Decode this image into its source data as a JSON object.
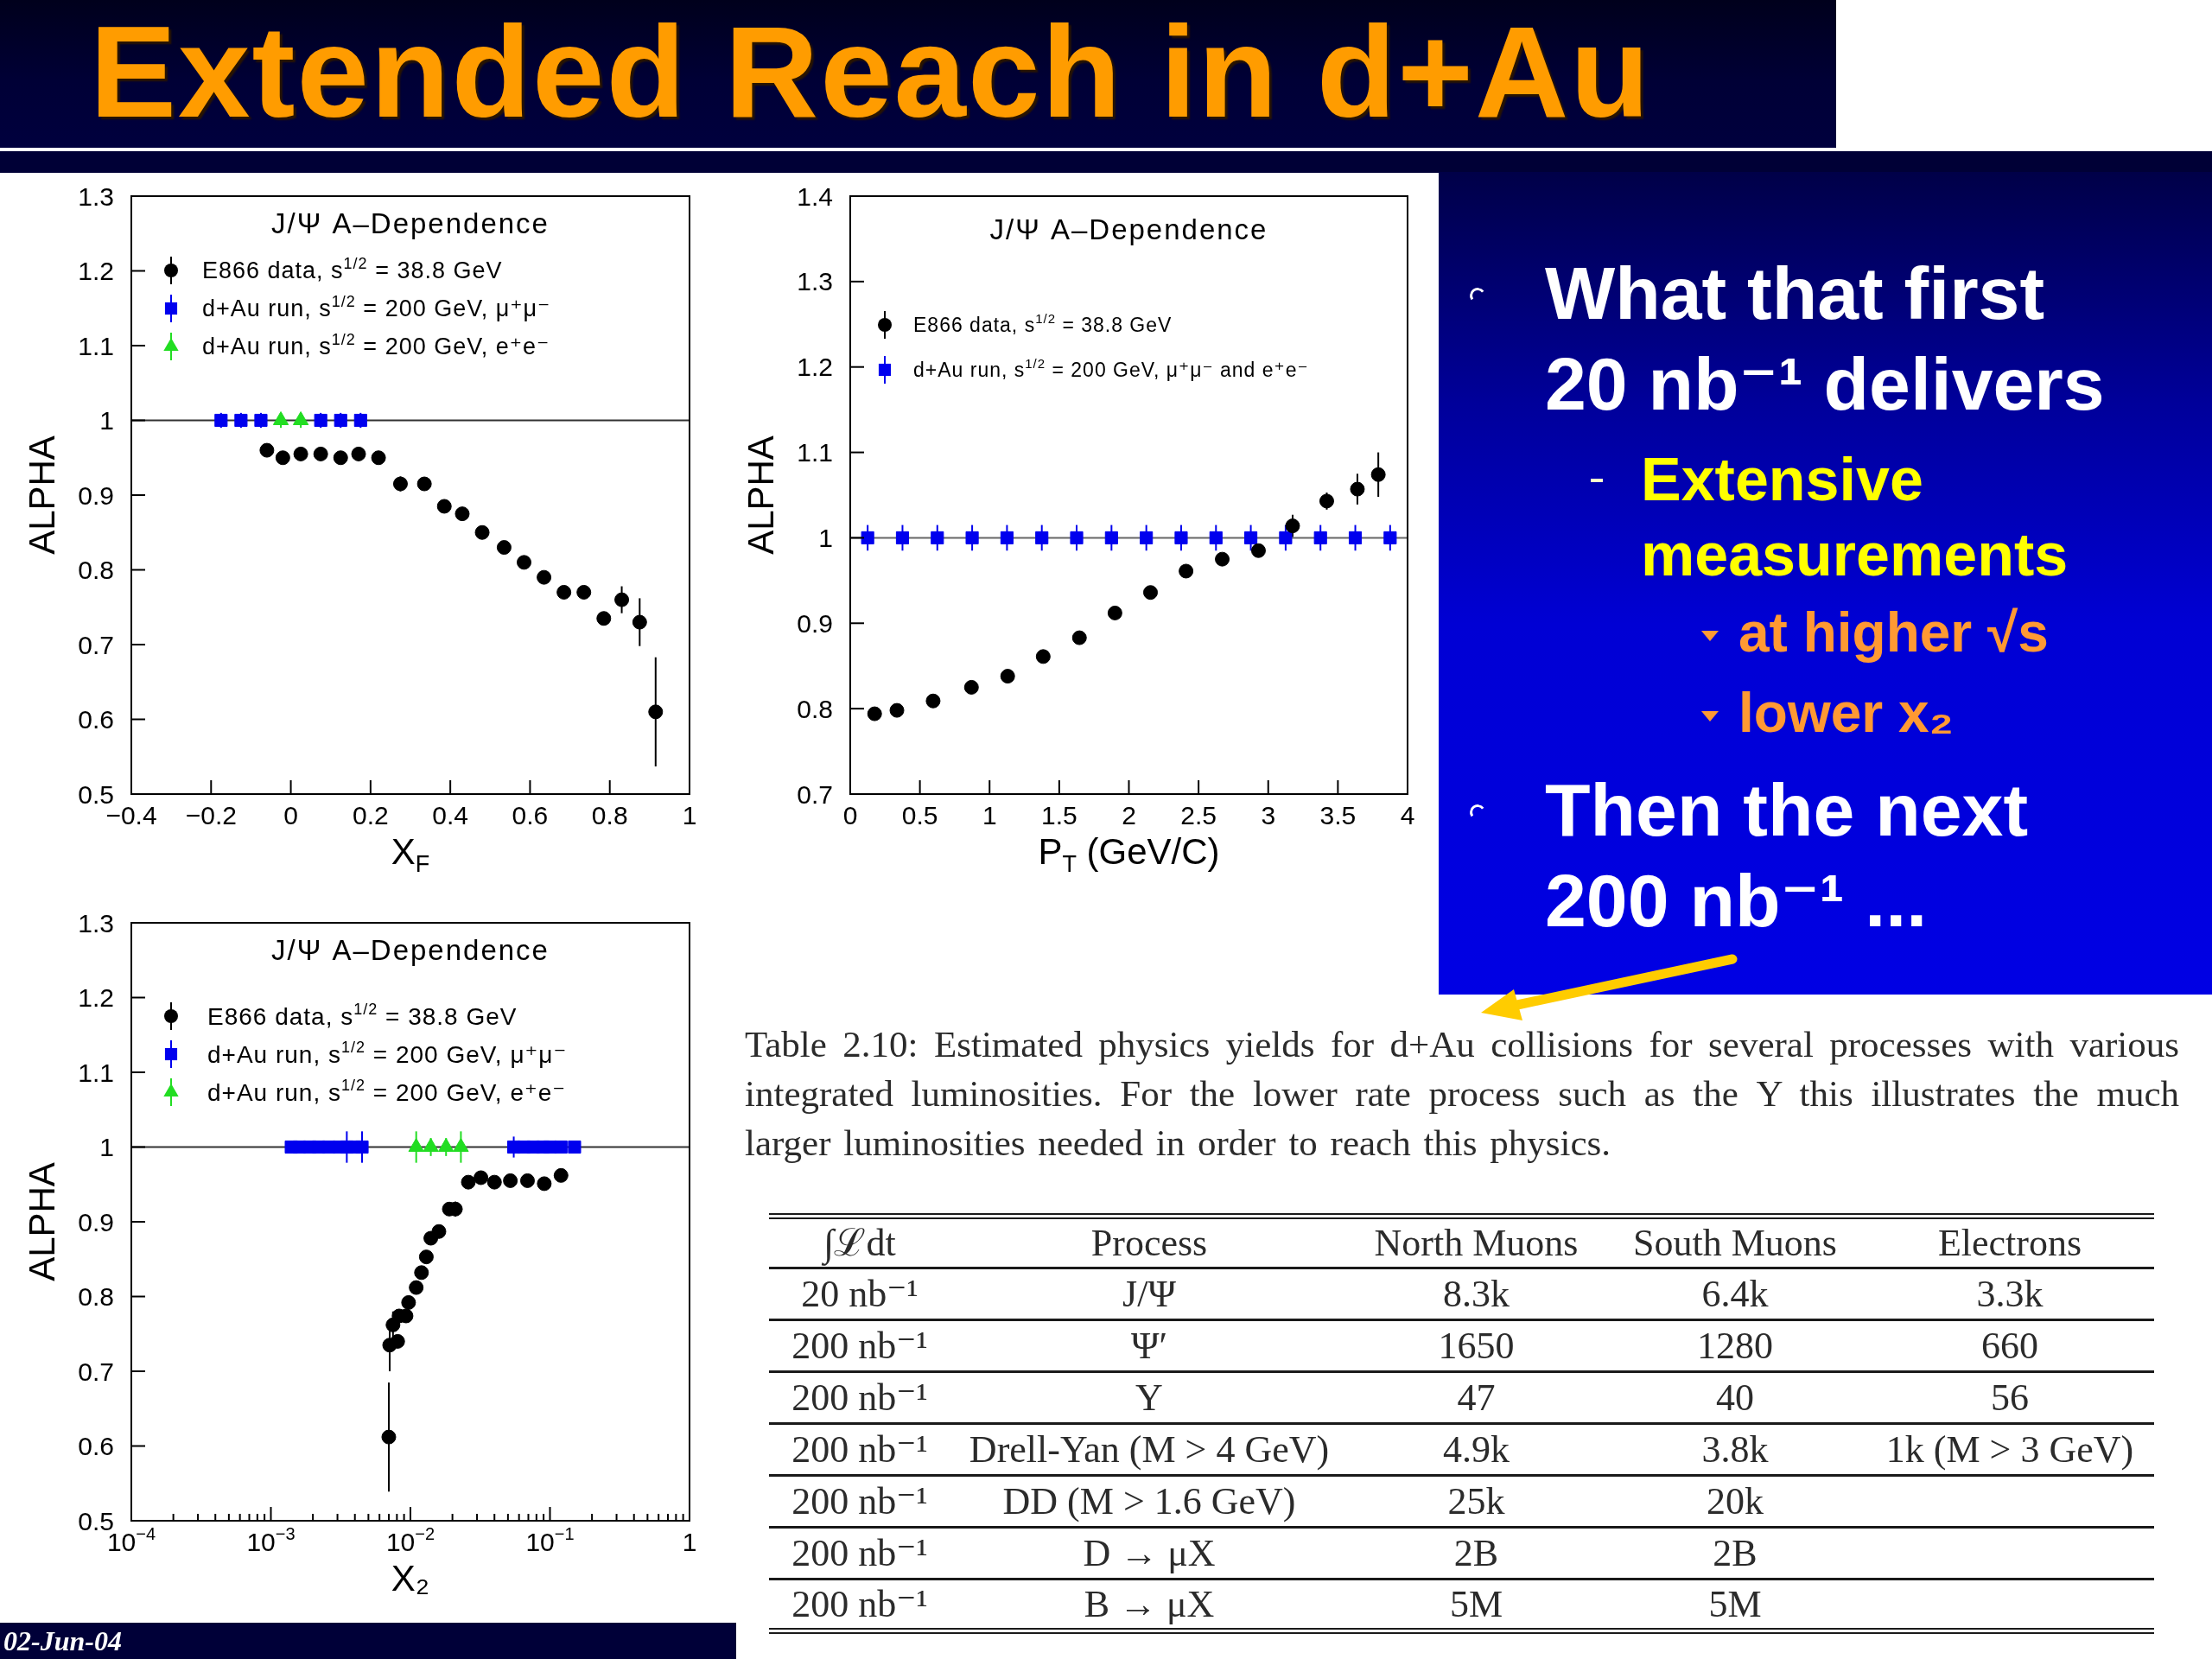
{
  "chart_data": [
    {
      "type": "other",
      "title": "Extended Reach in d+Au",
      "annotations": [
        "02-Jun-04"
      ]
    },
    {
      "type": "scatter",
      "title": "J/Ψ A–Dependence",
      "xlabel": "X$_{F}$",
      "ylabel": "ALPHA",
      "xlim": [
        -0.4,
        1
      ],
      "xticks": [
        {
          "value": -0.4,
          "label": "−0.4"
        },
        {
          "value": -0.2,
          "label": "−0.2"
        },
        0,
        0.2,
        0.4,
        0.6,
        0.8,
        1
      ],
      "ylim": [
        0.5,
        1.3
      ],
      "yticks": [
        0.5,
        0.6,
        0.7,
        0.8,
        0.9,
        1,
        1.1,
        1.2,
        1.3
      ],
      "legend": "top left",
      "ref_lines": [
        {
          "axis": "y",
          "value": 1,
          "color": "#333333"
        }
      ],
      "series": [
        {
          "name": "E866 data, s$^{1/2}$ = 38.8 GeV",
          "color": "#000000",
          "marker": "circle",
          "x": [
            -0.06,
            -0.02,
            0.025,
            0.075,
            0.125,
            0.17,
            0.22,
            0.275,
            0.335,
            0.385,
            0.43,
            0.48,
            0.535,
            0.585,
            0.635,
            0.685,
            0.735,
            0.785,
            0.83,
            0.875,
            0.915
          ],
          "values": [
            0.96,
            0.95,
            0.955,
            0.955,
            0.95,
            0.955,
            0.95,
            0.915,
            0.915,
            0.885,
            0.875,
            0.85,
            0.83,
            0.81,
            0.79,
            0.77,
            0.77,
            0.735,
            0.76,
            0.73,
            0.61
          ],
          "errors": [
            null,
            null,
            null,
            null,
            null,
            null,
            null,
            0.01,
            null,
            null,
            null,
            null,
            null,
            null,
            null,
            null,
            null,
            null,
            0.018,
            0.032,
            0.073
          ]
        },
        {
          "name": "d+Au run, s$^{1/2}$ = 200 GeV, μ⁺μ⁻",
          "color": "#0000ee",
          "marker": "square",
          "x": [
            -0.175,
            -0.125,
            -0.075,
            0.075,
            0.125,
            0.175
          ],
          "values": [
            1,
            1,
            1,
            1,
            1,
            1
          ],
          "errors": [
            0.01,
            0.01,
            0.01,
            0.01,
            0.01,
            0.01
          ]
        },
        {
          "name": "d+Au run, s$^{1/2}$ = 200 GeV, e⁺e⁻",
          "color": "#22dd22",
          "marker": "triangle",
          "x": [
            -0.025,
            0.025
          ],
          "values": [
            1,
            1
          ],
          "errors": [
            0.01,
            0.01
          ]
        }
      ]
    },
    {
      "type": "scatter",
      "title": "J/Ψ A–Dependence",
      "xlabel": "P$_{T}$ (GeV/C)",
      "ylabel": "ALPHA",
      "xlim": [
        0,
        4
      ],
      "xticks": [
        0,
        0.5,
        1,
        1.5,
        2,
        2.5,
        3,
        3.5,
        4
      ],
      "ylim": [
        0.7,
        1.4
      ],
      "yticks": [
        0.7,
        0.8,
        0.9,
        1,
        1.1,
        1.2,
        1.3,
        1.4
      ],
      "legend": "top left",
      "ref_lines": [
        {
          "axis": "y",
          "value": 1,
          "color": "#666666"
        }
      ],
      "series": [
        {
          "name": "E866 data, s$^{1/2}$ = 38.8 GeV",
          "color": "#000000",
          "marker": "circle",
          "x": [
            0.175,
            0.335,
            0.595,
            0.87,
            1.13,
            1.385,
            1.645,
            1.9,
            2.155,
            2.41,
            2.67,
            2.93,
            3.175,
            3.42,
            3.64,
            3.79
          ],
          "values": [
            0.794,
            0.798,
            0.809,
            0.825,
            0.838,
            0.861,
            0.883,
            0.912,
            0.936,
            0.961,
            0.975,
            0.985,
            1.014,
            1.043,
            1.057,
            1.074
          ],
          "errors": [
            null,
            null,
            null,
            null,
            null,
            null,
            null,
            null,
            null,
            null,
            null,
            null,
            0.013,
            0.01,
            0.018,
            0.026
          ]
        },
        {
          "name": "d+Au run, s$^{1/2}$ = 200 GeV, μ⁺μ⁻ and e⁺e⁻",
          "color": "#0000ee",
          "marker": "square",
          "x": [
            0.125,
            0.375,
            0.625,
            0.875,
            1.125,
            1.375,
            1.625,
            1.875,
            2.125,
            2.375,
            2.625,
            2.875,
            3.125,
            3.375,
            3.625,
            3.875
          ],
          "values": [
            1,
            1,
            1,
            1,
            1,
            1,
            1,
            1,
            1,
            1,
            1,
            1,
            1,
            1,
            1,
            1
          ],
          "errors": [
            0.015,
            0.015,
            0.015,
            0.015,
            0.015,
            0.015,
            0.015,
            0.015,
            0.015,
            0.015,
            0.015,
            0.015,
            0.015,
            0.015,
            0.015,
            0.015
          ]
        }
      ]
    },
    {
      "type": "other",
      "annotations": [
        "What that first 20 nb⁻¹ delivers",
        "Extensive measurements",
        "at higher √s",
        "lower x₂",
        "Then the next 200 nb⁻¹ ..."
      ]
    },
    {
      "type": "scatter",
      "title": "J/Ψ A–Dependence",
      "xlabel": "X₂",
      "ylabel": "ALPHA",
      "log": "x",
      "xlim": [
        0.0001,
        1
      ],
      "xticks": [
        {
          "value": 0.0001,
          "label": "10$^{−4}$"
        },
        {
          "value": 0.0002,
          "label": null
        },
        {
          "value": 0.0003,
          "label": null
        },
        {
          "value": 0.0004,
          "label": null
        },
        {
          "value": 0.0005,
          "label": null
        },
        {
          "value": 0.0006,
          "label": null
        },
        {
          "value": 0.0007,
          "label": null
        },
        {
          "value": 0.0008,
          "label": null
        },
        {
          "value": 0.0009,
          "label": null
        },
        {
          "value": 0.001,
          "label": "10$^{−3}$"
        },
        {
          "value": 0.002,
          "label": null
        },
        {
          "value": 0.003,
          "label": null
        },
        {
          "value": 0.004,
          "label": null
        },
        {
          "value": 0.005,
          "label": null
        },
        {
          "value": 0.006,
          "label": null
        },
        {
          "value": 0.007,
          "label": null
        },
        {
          "value": 0.008,
          "label": null
        },
        {
          "value": 0.009,
          "label": null
        },
        {
          "value": 0.01,
          "label": "10$^{−2}$"
        },
        {
          "value": 0.02,
          "label": null
        },
        {
          "value": 0.03,
          "label": null
        },
        {
          "value": 0.04,
          "label": null
        },
        {
          "value": 0.05,
          "label": null
        },
        {
          "value": 0.06,
          "label": null
        },
        {
          "value": 0.07,
          "label": null
        },
        {
          "value": 0.08,
          "label": null
        },
        {
          "value": 0.09,
          "label": null
        },
        {
          "value": 0.1,
          "label": "10$^{−1}$"
        },
        {
          "value": 0.2,
          "label": null
        },
        {
          "value": 0.3,
          "label": null
        },
        {
          "value": 0.4,
          "label": null
        },
        {
          "value": 0.5,
          "label": null
        },
        {
          "value": 0.6,
          "label": null
        },
        {
          "value": 0.7,
          "label": null
        },
        {
          "value": 0.8,
          "label": null
        },
        {
          "value": 0.9,
          "label": null
        },
        1
      ],
      "ylim": [
        0.5,
        1.3
      ],
      "yticks": [
        0.5,
        0.6,
        0.7,
        0.8,
        0.9,
        1,
        1.1,
        1.2,
        1.3
      ],
      "legend": "top left",
      "ref_lines": [
        {
          "axis": "y",
          "value": 1,
          "color": "#333333"
        }
      ],
      "series": [
        {
          "name": "E866 data, s$^{1/2}$ = 38.8 GeV",
          "color": "#000000",
          "marker": "circle",
          "x": [
            0.007,
            0.0071,
            0.0075,
            0.0081,
            0.0083,
            0.0093,
            0.0097,
            0.011,
            0.012,
            0.013,
            0.014,
            0.016,
            0.019,
            0.021,
            0.026,
            0.032,
            0.04,
            0.052,
            0.069,
            0.091,
            0.12
          ],
          "values": [
            0.612,
            0.735,
            0.762,
            0.74,
            0.774,
            0.774,
            0.792,
            0.812,
            0.832,
            0.853,
            0.878,
            0.887,
            0.917,
            0.917,
            0.953,
            0.959,
            0.953,
            0.955,
            0.955,
            0.951,
            0.962
          ],
          "errors": [
            0.073,
            0.035,
            0.018,
            null,
            null,
            null,
            null,
            null,
            null,
            null,
            null,
            null,
            null,
            0.01,
            null,
            null,
            null,
            null,
            null,
            null,
            null
          ]
        },
        {
          "name": "d+Au run, s$^{1/2}$ = 200 GeV, μ⁺μ⁻",
          "color": "#0000ee",
          "marker": "square",
          "x": [
            0.0014,
            0.0016,
            0.0019,
            0.0022,
            0.0026,
            0.0031,
            0.0035,
            0.004,
            0.0045,
            0.055,
            0.065,
            0.076,
            0.089,
            0.1,
            0.12,
            0.15
          ],
          "values": [
            1,
            1,
            1,
            1,
            1,
            1,
            1,
            1,
            1,
            1,
            1,
            1,
            1,
            1,
            1,
            1
          ],
          "errors": [
            0.008,
            null,
            null,
            null,
            null,
            null,
            0.021,
            null,
            0.021,
            0.014,
            null,
            null,
            null,
            null,
            null,
            0.006
          ]
        },
        {
          "name": "d+Au run, s$^{1/2}$ = 200 GeV, e⁺e⁻",
          "color": "#22dd22",
          "marker": "triangle",
          "x": [
            0.011,
            0.014,
            0.018,
            0.023
          ],
          "values": [
            1,
            1,
            1,
            1
          ],
          "errors": [
            0.021,
            0.012,
            0.012,
            0.021
          ]
        }
      ]
    },
    {
      "type": "other",
      "annotations": [
        "Table 2.10: Estimated physics yields for d+Au collisions for several processes with various integrated luminosities. For the lower rate process such as the Υ this illustrates the much larger luminosities needed in order to reach this physics."
      ],
      "categories": [
        "∫ℒdt",
        "Process",
        "North Muons",
        "South Muons",
        "Electrons"
      ],
      "cell_labels": [
        [
          "20 nb⁻¹",
          "J/Ψ",
          "8.3k",
          "6.4k",
          "3.3k"
        ],
        [
          "200 nb⁻¹",
          "Ψ′",
          "1650",
          "1280",
          "660"
        ],
        [
          "200 nb⁻¹",
          "Υ",
          "47",
          "40",
          "56"
        ],
        [
          "200 nb⁻¹",
          "Drell-Yan (M > 4 GeV)",
          "4.9k",
          "3.8k",
          "1k (M > 3 GeV)"
        ],
        [
          "200 nb⁻¹",
          "DD (M > 1.6 GeV)",
          "25k",
          "20k",
          null
        ],
        [
          "200 nb⁻¹",
          "D → μX",
          "2B",
          "2B",
          null
        ],
        [
          "200 nb⁻¹",
          "B → μX",
          "5M",
          "5M",
          null
        ]
      ]
    }
  ]
}
